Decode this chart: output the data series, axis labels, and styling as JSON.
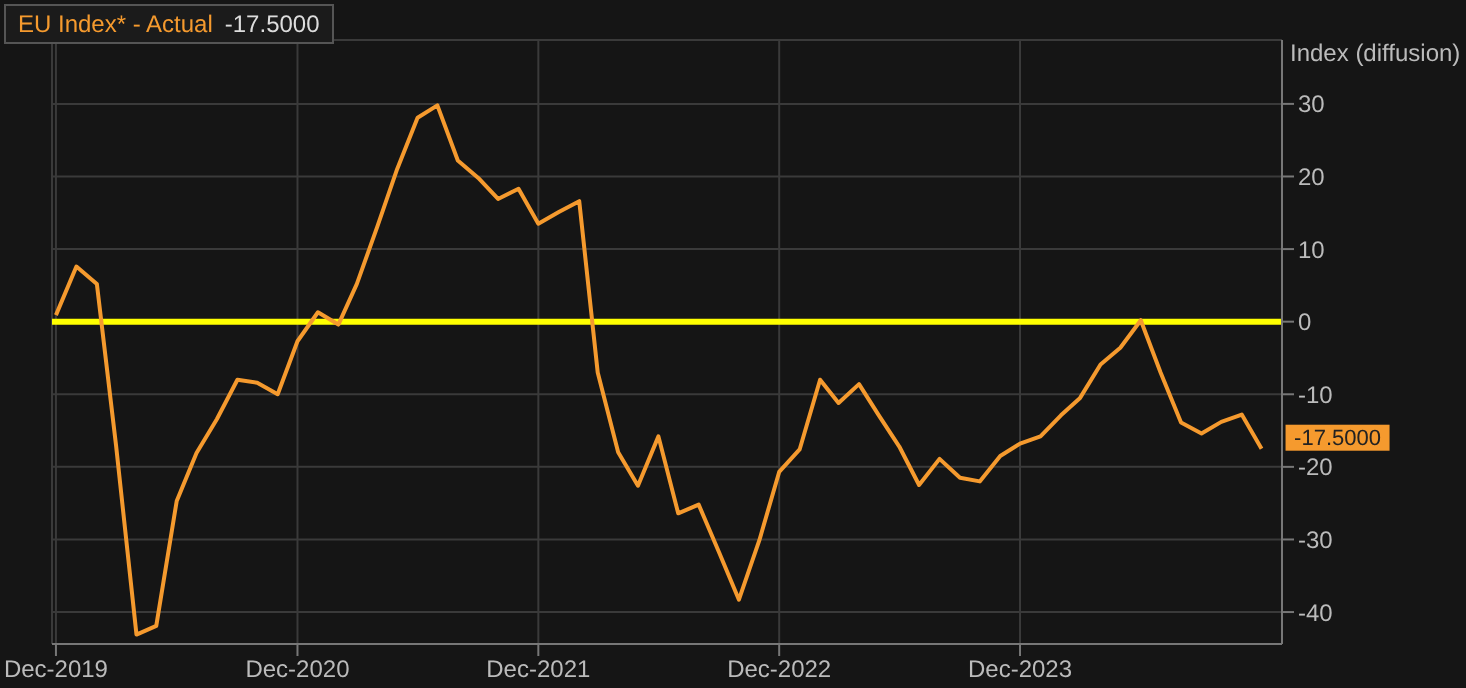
{
  "chart_data": {
    "type": "line",
    "ylabel": "Index (diffusion)",
    "x": [
      "2019-12",
      "2020-01",
      "2020-02",
      "2020-03",
      "2020-04",
      "2020-05",
      "2020-06",
      "2020-07",
      "2020-08",
      "2020-09",
      "2020-10",
      "2020-11",
      "2020-12",
      "2021-01",
      "2021-02",
      "2021-03",
      "2021-04",
      "2021-05",
      "2021-06",
      "2021-07",
      "2021-08",
      "2021-09",
      "2021-10",
      "2021-11",
      "2021-12",
      "2022-01",
      "2022-02",
      "2022-03",
      "2022-04",
      "2022-05",
      "2022-06",
      "2022-07",
      "2022-08",
      "2022-09",
      "2022-10",
      "2022-11",
      "2022-12",
      "2023-01",
      "2023-02",
      "2023-03",
      "2023-04",
      "2023-05",
      "2023-06",
      "2023-07",
      "2023-08",
      "2023-09",
      "2023-10",
      "2023-11",
      "2023-12",
      "2024-01",
      "2024-02",
      "2024-03",
      "2024-04",
      "2024-05",
      "2024-06",
      "2024-07",
      "2024-08",
      "2024-09",
      "2024-10",
      "2024-11",
      "2024-12"
    ],
    "series": [
      {
        "name": "EU Index* - Actual",
        "color": "#f59a2e",
        "values": [
          0.9,
          7.6,
          5.2,
          -17,
          -43.1,
          -41.9,
          -24.7,
          -18.1,
          -13.4,
          -8.0,
          -8.4,
          -10.0,
          -2.7,
          1.3,
          -0.4,
          5.2,
          13.1,
          21.0,
          28.1,
          29.8,
          22.2,
          19.8,
          16.9,
          18.3,
          13.5,
          15.1,
          16.6,
          -7.0,
          -18.0,
          -22.6,
          -15.8,
          -26.4,
          -25.2,
          -31.8,
          -38.3,
          -30.1,
          -20.7,
          -17.6,
          -8.0,
          -11.2,
          -8.6,
          -12.9,
          -17.2,
          -22.5,
          -18.9,
          -21.5,
          -22.0,
          -18.5,
          -16.8,
          -15.8,
          -12.9,
          -10.5,
          -5.9,
          -3.6,
          0.2,
          -7.0,
          -13.9,
          -15.4,
          -13.8,
          -12.8,
          -17.5
        ],
        "value_labels": [
          null,
          null,
          null,
          null,
          null,
          null,
          null,
          null,
          null,
          null,
          null,
          null,
          null,
          null,
          null,
          null,
          null,
          null,
          null,
          null,
          null,
          null,
          null,
          null,
          null,
          null,
          null,
          null,
          null,
          null,
          null,
          null,
          null,
          null,
          null,
          null,
          null,
          null,
          null,
          null,
          null,
          null,
          null,
          null,
          null,
          null,
          null,
          null,
          null,
          null,
          null,
          null,
          null,
          null,
          null,
          null,
          null,
          null,
          null,
          null,
          "-17.5000"
        ]
      }
    ],
    "xlim": [
      "2019-11-25",
      "2025-01"
    ],
    "xticks": [
      {
        "value": "2019-12",
        "label": "Dec-2019"
      },
      {
        "value": "2020-12",
        "label": "Dec-2020"
      },
      {
        "value": "2021-12",
        "label": "Dec-2021"
      },
      {
        "value": "2022-12",
        "label": "Dec-2022"
      },
      {
        "value": "2023-12",
        "label": "Dec-2023"
      }
    ],
    "ylim": [
      -44.4,
      38.8
    ],
    "yticks": [
      -40,
      -30,
      -20,
      -10,
      0,
      10,
      20,
      30
    ],
    "ref_lines": [
      {
        "axis": "y",
        "value": 0,
        "color": "#ffff00"
      }
    ],
    "grid": true,
    "legend": "top left",
    "marker": "none",
    "line_style": "solid"
  }
}
